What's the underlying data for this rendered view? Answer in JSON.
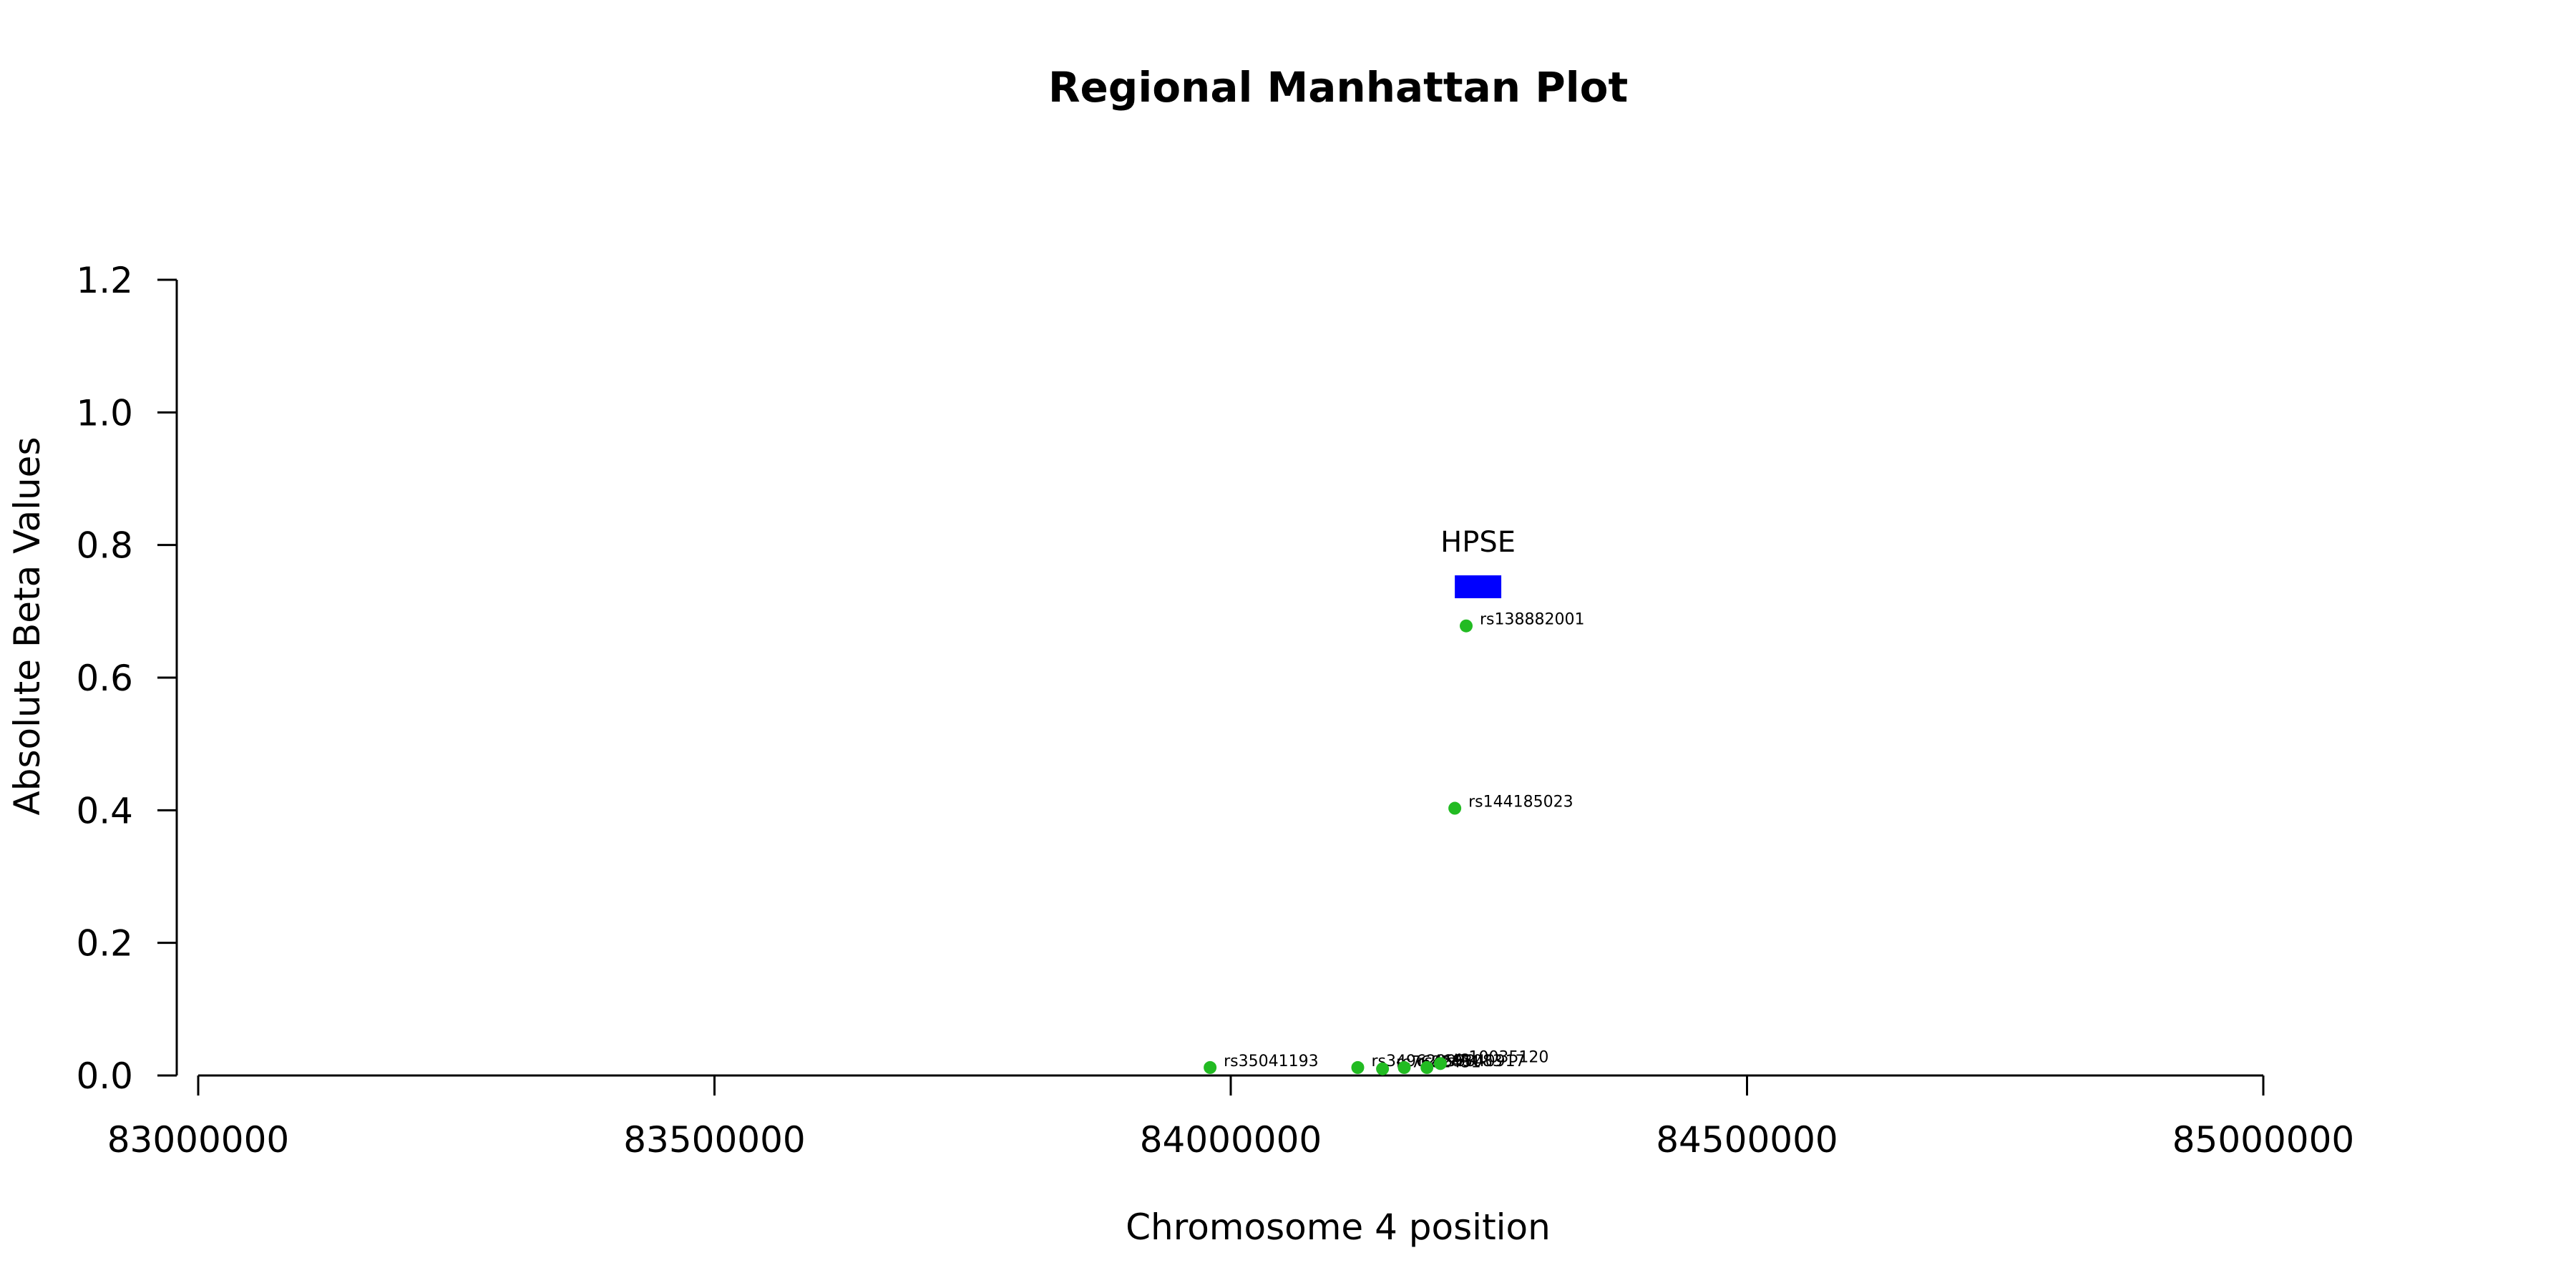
{
  "chart_data": {
    "type": "scatter",
    "title": "Regional Manhattan Plot",
    "xlabel": "Chromosome 4 position",
    "ylabel": "Absolute Beta Values",
    "xlim": [
      83000000,
      85000000
    ],
    "ylim": [
      0,
      1.2
    ],
    "x_ticks": [
      83000000,
      83500000,
      84000000,
      84500000,
      85000000
    ],
    "x_tick_labels": [
      "83000000",
      "83500000",
      "84000000",
      "84500000",
      "85000000"
    ],
    "y_ticks": [
      0.0,
      0.2,
      0.4,
      0.6,
      0.8,
      1.0,
      1.2
    ],
    "y_tick_labels": [
      "0.0",
      "0.2",
      "0.4",
      "0.6",
      "0.8",
      "1.0",
      "1.2"
    ],
    "grid": false,
    "point_color": "#22bb22",
    "gene_color": "#0000ff",
    "genes": [
      {
        "name": "HPSE",
        "start": 84217000,
        "end": 84262000,
        "y": 0.737
      }
    ],
    "points": [
      {
        "label": "rs35041193",
        "x": 83980000,
        "y": 0.012
      },
      {
        "label": "rs34962997",
        "x": 84123000,
        "y": 0.012
      },
      {
        "label": "rs7682451",
        "x": 84147000,
        "y": 0.01
      },
      {
        "label": "rs4693083",
        "x": 84168000,
        "y": 0.012
      },
      {
        "label": "rs6840917",
        "x": 84190000,
        "y": 0.012
      },
      {
        "label": "rs10035120",
        "x": 84203000,
        "y": 0.018
      },
      {
        "label": "rs144185023",
        "x": 84217000,
        "y": 0.403
      },
      {
        "label": "rs138882001",
        "x": 84228000,
        "y": 0.678
      }
    ]
  }
}
